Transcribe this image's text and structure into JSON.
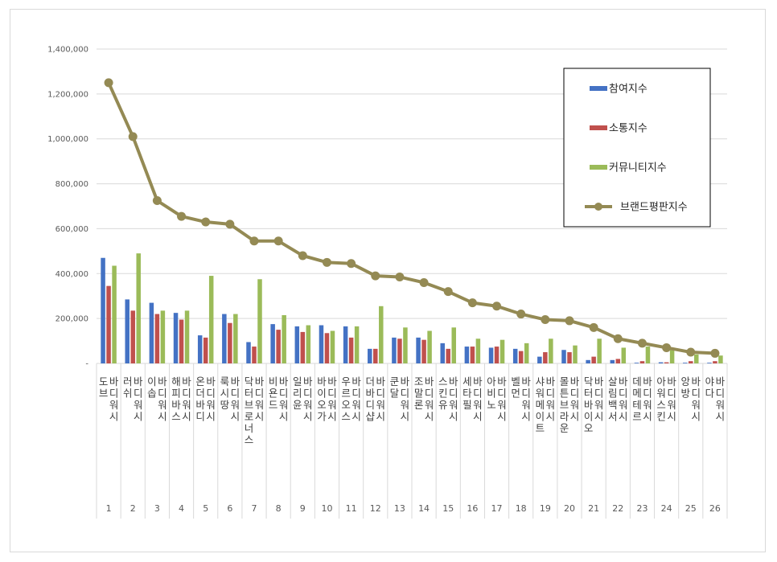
{
  "chart_data": {
    "type": "bar",
    "y_ticks": [
      "-",
      "200,000",
      "400,000",
      "600,000",
      "800,000",
      "1,000,000",
      "1,200,000",
      "1,400,000"
    ],
    "ylim": [
      0,
      1400000
    ],
    "grid": true,
    "legend_position": "top-right",
    "ranks": [
      "1",
      "2",
      "3",
      "4",
      "5",
      "6",
      "7",
      "8",
      "9",
      "10",
      "11",
      "12",
      "13",
      "14",
      "15",
      "16",
      "17",
      "18",
      "19",
      "20",
      "21",
      "22",
      "23",
      "24",
      "25",
      "26"
    ],
    "categories": [
      "도브 바디워시",
      "러쉬 바디워시",
      "이솝 바디워시",
      "해피바스 바디워시",
      "온더바디 바디워시",
      "룩시땅 바디워시",
      "닥터브로너스 바디워시",
      "비욘드 바디워시",
      "일리윤 바디워시",
      "바이오가 바디워시",
      "우르오스 바디워시",
      "더바디샵 바디워시",
      "쿤달 바디워시",
      "조말론 바디워시",
      "스킨유 바디워시",
      "세타필 바디워시",
      "아비노 바디워시",
      "벨먼 바디워시",
      "샤워메이트 바디워시",
      "몰튼브라운 바디워시",
      "닥터바이오 바디워시",
      "살림백서 바디워시",
      "데메테르 바디워시",
      "아워스킨 바디워시",
      "앙방 바디워시",
      "야다 바디워시"
    ],
    "series": [
      {
        "name": "참여지수",
        "type": "bar",
        "color": "#4472C4",
        "values": [
          470000,
          285000,
          270000,
          225000,
          125000,
          220000,
          95000,
          175000,
          165000,
          170000,
          165000,
          65000,
          115000,
          115000,
          90000,
          75000,
          70000,
          65000,
          30000,
          60000,
          15000,
          15000,
          3000,
          5000,
          3000,
          3000
        ]
      },
      {
        "name": "소통지수",
        "type": "bar",
        "color": "#C0504D",
        "values": [
          345000,
          235000,
          220000,
          195000,
          115000,
          180000,
          75000,
          150000,
          140000,
          135000,
          115000,
          65000,
          110000,
          105000,
          65000,
          75000,
          75000,
          55000,
          50000,
          50000,
          30000,
          20000,
          10000,
          5000,
          10000,
          10000
        ]
      },
      {
        "name": "커뮤니티지수",
        "type": "bar",
        "color": "#9BBB59",
        "values": [
          435000,
          490000,
          235000,
          235000,
          390000,
          220000,
          375000,
          215000,
          170000,
          145000,
          165000,
          255000,
          160000,
          145000,
          160000,
          110000,
          105000,
          90000,
          110000,
          80000,
          110000,
          70000,
          75000,
          65000,
          40000,
          35000
        ]
      },
      {
        "name": "브랜드평판지수",
        "type": "line",
        "color": "#948A54",
        "values": [
          1250000,
          1010000,
          725000,
          655000,
          630000,
          620000,
          545000,
          545000,
          480000,
          450000,
          445000,
          390000,
          385000,
          360000,
          320000,
          270000,
          255000,
          220000,
          195000,
          190000,
          160000,
          110000,
          90000,
          70000,
          50000,
          45000
        ]
      }
    ]
  }
}
